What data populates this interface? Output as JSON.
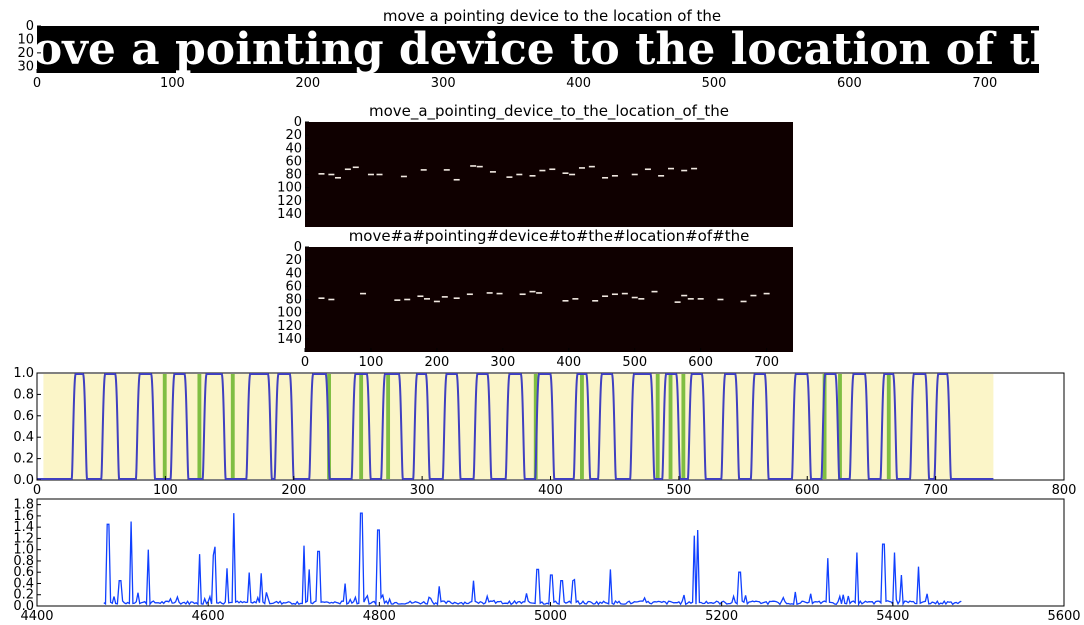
{
  "chart_data": [
    {
      "type": "image",
      "title": "move a pointing device to the location of the",
      "rendered_text": "move a pointing device to the location of the",
      "xlim": [
        0,
        740
      ],
      "ylim": [
        35,
        0
      ],
      "xticks": [
        0,
        100,
        200,
        300,
        400,
        500,
        600,
        700
      ],
      "yticks": [
        0,
        10,
        20,
        30
      ]
    },
    {
      "type": "heatmap",
      "title": "move_a_pointing_device_to_the_location_of_the",
      "xlim": [
        0,
        740
      ],
      "ylim": [
        160,
        0
      ],
      "xticks": [],
      "yticks": [
        0,
        20,
        40,
        60,
        80,
        100,
        120,
        140
      ],
      "marks": [
        {
          "x": 25,
          "y": 79
        },
        {
          "x": 40,
          "y": 80
        },
        {
          "x": 50,
          "y": 85
        },
        {
          "x": 65,
          "y": 72
        },
        {
          "x": 77,
          "y": 69
        },
        {
          "x": 100,
          "y": 80
        },
        {
          "x": 113,
          "y": 80
        },
        {
          "x": 150,
          "y": 83
        },
        {
          "x": 180,
          "y": 73
        },
        {
          "x": 215,
          "y": 73
        },
        {
          "x": 230,
          "y": 88
        },
        {
          "x": 255,
          "y": 67
        },
        {
          "x": 265,
          "y": 68
        },
        {
          "x": 285,
          "y": 76
        },
        {
          "x": 310,
          "y": 84
        },
        {
          "x": 325,
          "y": 80
        },
        {
          "x": 345,
          "y": 82
        },
        {
          "x": 360,
          "y": 74
        },
        {
          "x": 375,
          "y": 72
        },
        {
          "x": 395,
          "y": 78
        },
        {
          "x": 405,
          "y": 80
        },
        {
          "x": 420,
          "y": 70
        },
        {
          "x": 435,
          "y": 68
        },
        {
          "x": 455,
          "y": 85
        },
        {
          "x": 470,
          "y": 82
        },
        {
          "x": 500,
          "y": 80
        },
        {
          "x": 520,
          "y": 72
        },
        {
          "x": 540,
          "y": 82
        },
        {
          "x": 555,
          "y": 71
        },
        {
          "x": 575,
          "y": 74
        },
        {
          "x": 590,
          "y": 71
        }
      ]
    },
    {
      "type": "heatmap",
      "title": "move#a#pointing#device#to#the#location#of#the",
      "xlim": [
        0,
        740
      ],
      "ylim": [
        160,
        0
      ],
      "xticks": [
        0,
        100,
        200,
        300,
        400,
        500,
        600,
        700
      ],
      "yticks": [
        0,
        20,
        40,
        60,
        80,
        100,
        120,
        140
      ],
      "marks": [
        {
          "x": 25,
          "y": 78
        },
        {
          "x": 40,
          "y": 80
        },
        {
          "x": 88,
          "y": 71
        },
        {
          "x": 140,
          "y": 81
        },
        {
          "x": 155,
          "y": 80
        },
        {
          "x": 175,
          "y": 75
        },
        {
          "x": 185,
          "y": 79
        },
        {
          "x": 200,
          "y": 83
        },
        {
          "x": 212,
          "y": 76
        },
        {
          "x": 230,
          "y": 78
        },
        {
          "x": 250,
          "y": 72
        },
        {
          "x": 280,
          "y": 70
        },
        {
          "x": 295,
          "y": 71
        },
        {
          "x": 330,
          "y": 72
        },
        {
          "x": 345,
          "y": 68
        },
        {
          "x": 355,
          "y": 70
        },
        {
          "x": 395,
          "y": 82
        },
        {
          "x": 410,
          "y": 79
        },
        {
          "x": 440,
          "y": 82
        },
        {
          "x": 455,
          "y": 75
        },
        {
          "x": 470,
          "y": 72
        },
        {
          "x": 485,
          "y": 71
        },
        {
          "x": 500,
          "y": 77
        },
        {
          "x": 510,
          "y": 79
        },
        {
          "x": 530,
          "y": 68
        },
        {
          "x": 565,
          "y": 84
        },
        {
          "x": 575,
          "y": 74
        },
        {
          "x": 585,
          "y": 79
        },
        {
          "x": 600,
          "y": 79
        },
        {
          "x": 630,
          "y": 80
        },
        {
          "x": 665,
          "y": 83
        },
        {
          "x": 680,
          "y": 74
        },
        {
          "x": 700,
          "y": 71
        }
      ]
    },
    {
      "type": "area",
      "title": "",
      "xlim": [
        0,
        800
      ],
      "ylim": [
        0,
        1.0
      ],
      "xticks": [
        0,
        100,
        200,
        300,
        400,
        500,
        600,
        700,
        800
      ],
      "yticks": [
        0.0,
        0.2,
        0.4,
        0.6,
        0.8,
        1.0
      ],
      "series": [
        {
          "color": "#4040c0",
          "values_pulses": [
            [
              27,
              39
            ],
            [
              50,
              64
            ],
            [
              77,
              92
            ],
            [
              104,
              118
            ],
            [
              129,
              147
            ],
            [
              163,
              183
            ],
            [
              185,
              200
            ],
            [
              212,
              228
            ],
            [
              245,
              260
            ],
            [
              268,
              285
            ],
            [
              293,
              306
            ],
            [
              316,
              330
            ],
            [
              340,
              354
            ],
            [
              365,
              380
            ],
            [
              388,
              403
            ],
            [
              418,
              431
            ],
            [
              437,
              451
            ],
            [
              462,
              481
            ],
            [
              487,
              501
            ],
            [
              507,
              521
            ],
            [
              533,
              547
            ],
            [
              556,
              570
            ],
            [
              588,
              603
            ],
            [
              611,
              625
            ],
            [
              633,
              648
            ],
            [
              657,
              670
            ],
            [
              680,
              695
            ],
            [
              699,
              712
            ]
          ]
        },
        {
          "color": "#30a000",
          "values_pulses": [
            [
              98,
              101
            ],
            [
              125,
              128
            ],
            [
              151,
              154
            ],
            [
              226,
              229
            ],
            [
              251,
              254
            ],
            [
              272,
              275
            ],
            [
              387,
              390
            ],
            [
              423,
              426
            ],
            [
              482,
              485
            ],
            [
              492,
              495
            ],
            [
              502,
              505
            ],
            [
              612,
              615
            ],
            [
              624,
              627
            ],
            [
              662,
              665
            ]
          ]
        },
        {
          "color": "#f5e050",
          "values": "approx 1.0 across 0–750 with dips near 10–15 and 715–740"
        }
      ]
    },
    {
      "type": "line",
      "title": "",
      "xlim": [
        4400,
        5600
      ],
      "ylim": [
        0,
        1.9
      ],
      "xticks": [
        4400,
        4600,
        4800,
        5000,
        5200,
        5400,
        5600
      ],
      "yticks": [
        0.0,
        0.2,
        0.4,
        0.6,
        0.8,
        1.0,
        1.2,
        1.4,
        1.6,
        1.8
      ],
      "series": [
        {
          "color": "#1040ff",
          "spikes": [
            [
              4483,
              1.45
            ],
            [
              4497,
              0.45
            ],
            [
              4510,
              1.5
            ],
            [
              4530,
              1.0
            ],
            [
              4590,
              0.92
            ],
            [
              4607,
              0.9
            ],
            [
              4622,
              0.55
            ],
            [
              4630,
              1.65
            ],
            [
              4648,
              0.4
            ],
            [
              4662,
              0.58
            ],
            [
              4712,
              1.07
            ],
            [
              4718,
              0.65
            ],
            [
              4729,
              0.97
            ],
            [
              4760,
              0.4
            ],
            [
              4779,
              1.65
            ],
            [
              4799,
              1.35
            ],
            [
              4870,
              0.35
            ],
            [
              4910,
              0.3
            ],
            [
              4985,
              0.65
            ],
            [
              5001,
              0.55
            ],
            [
              5013,
              0.45
            ],
            [
              5027,
              0.45
            ],
            [
              5070,
              0.65
            ],
            [
              5168,
              1.25
            ],
            [
              5172,
              1.35
            ],
            [
              5221,
              0.6
            ],
            [
              5324,
              0.85
            ],
            [
              5358,
              0.95
            ],
            [
              5389,
              1.1
            ],
            [
              5402,
              0.95
            ],
            [
              5410,
              0.55
            ],
            [
              5430,
              0.7
            ]
          ],
          "baseline": 0.06,
          "x_range": [
            4478,
            5480
          ]
        }
      ]
    }
  ]
}
